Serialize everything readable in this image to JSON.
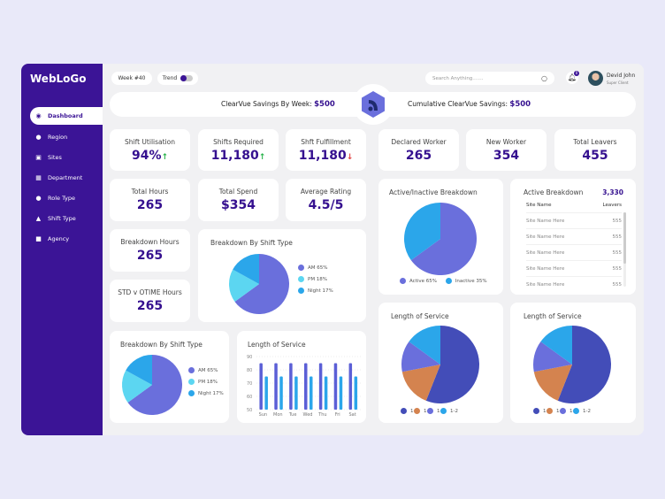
{
  "brand": {
    "logo": "WebLoGo"
  },
  "sidebar": {
    "items": [
      {
        "label": "Dashboard",
        "icon": "dashboard-icon",
        "active": true
      },
      {
        "label": "Region",
        "icon": "location-pin-icon"
      },
      {
        "label": "Sites",
        "icon": "sites-icon"
      },
      {
        "label": "Department",
        "icon": "grid-icon"
      },
      {
        "label": "Role Type",
        "icon": "user-icon"
      },
      {
        "label": "Shift Type",
        "icon": "shift-icon"
      },
      {
        "label": "Agency",
        "icon": "briefcase-icon"
      }
    ]
  },
  "topbar": {
    "week": "Week #40",
    "trend_label": "Trend",
    "trend_on": true,
    "search_placeholder": "Search Anything.......",
    "notifications": "0",
    "user_name": "Devid John",
    "user_role": "Super Client"
  },
  "savings": {
    "week_label": "ClearVue Savings By Week:",
    "week_value": "$500",
    "cum_label": "Cumulative ClearVue Savings:",
    "cum_value": "$500"
  },
  "kpis": [
    {
      "title": "Shift Utilisation",
      "value": "94%",
      "trend": "up"
    },
    {
      "title": "Shifts Required",
      "value": "11,180",
      "trend": "up"
    },
    {
      "title": "Shft Fulfillment",
      "value": "11,180",
      "trend": "down"
    },
    {
      "title": "Declared Worker",
      "value": "265"
    },
    {
      "title": "New Worker",
      "value": "354"
    },
    {
      "title": "Total Leavers",
      "value": "455"
    },
    {
      "title": "Total Hours",
      "value": "265"
    },
    {
      "title": "Total Spend",
      "value": "$354"
    },
    {
      "title": "Average Rating",
      "value": "4.5/5"
    },
    {
      "title": "Breakdown Hours",
      "value": "265"
    },
    {
      "title": "STD v OTIME Hours",
      "value": "265"
    }
  ],
  "active_breakdown": {
    "title": "Active Breakdown",
    "total": "3,330",
    "col1": "Site Name",
    "col2": "Leavers",
    "rows": [
      {
        "site": "Site Name Here",
        "leavers": "555"
      },
      {
        "site": "Site Name Here",
        "leavers": "555"
      },
      {
        "site": "Site Name Here",
        "leavers": "555"
      },
      {
        "site": "Site Name Here",
        "leavers": "555"
      },
      {
        "site": "Site Name Here",
        "leavers": "555"
      }
    ]
  },
  "chart_data": [
    {
      "type": "pie",
      "title": "Active/Inactive Breakdown",
      "labels": [
        "Active 65%",
        "Inactive 35%"
      ],
      "values": [
        65,
        35
      ],
      "colors": [
        "#6a6fdc",
        "#2ba6ea"
      ]
    },
    {
      "type": "pie",
      "title": "Breakdown By Shift Type",
      "labels": [
        "AM 65%",
        "PM 18%",
        "Night 17%"
      ],
      "values": [
        65,
        18,
        17
      ],
      "colors": [
        "#6a6fdc",
        "#5cd6f1",
        "#2ba6ea"
      ]
    },
    {
      "type": "pie",
      "title": "Breakdown By Shift Type",
      "labels": [
        "AM 65%",
        "PM 18%",
        "Night 17%"
      ],
      "values": [
        65,
        18,
        17
      ],
      "colors": [
        "#6a6fdc",
        "#5cd6f1",
        "#2ba6ea"
      ]
    },
    {
      "type": "bar",
      "title": "Length of Service",
      "categories": [
        "Sun",
        "Mon",
        "Tue",
        "Wed",
        "Thu",
        "Fri",
        "Sat"
      ],
      "ylim": [
        50,
        90
      ],
      "yticks": [
        "90",
        "80",
        "70",
        "60",
        "50"
      ],
      "grid": true,
      "series": [
        {
          "values": [
            85,
            85,
            85,
            85,
            85,
            85,
            85
          ],
          "color": "#5b5fd6"
        },
        {
          "values": [
            75,
            75,
            75,
            75,
            75,
            75,
            75
          ],
          "color": "#2ba6ea"
        }
      ]
    },
    {
      "type": "pie",
      "title": "Length of Service",
      "labels": [
        "1-2",
        "1-2",
        "1-2",
        "1-2"
      ],
      "values": [
        56,
        16,
        13,
        15
      ],
      "colors": [
        "#434db8",
        "#d4834f",
        "#6a6fdc",
        "#2ba6ea"
      ]
    },
    {
      "type": "pie",
      "title": "Length of Service",
      "labels": [
        "1-2",
        "1-2",
        "1-2",
        "1-2"
      ],
      "values": [
        56,
        16,
        13,
        15
      ],
      "colors": [
        "#434db8",
        "#d4834f",
        "#6a6fdc",
        "#2ba6ea"
      ]
    }
  ]
}
